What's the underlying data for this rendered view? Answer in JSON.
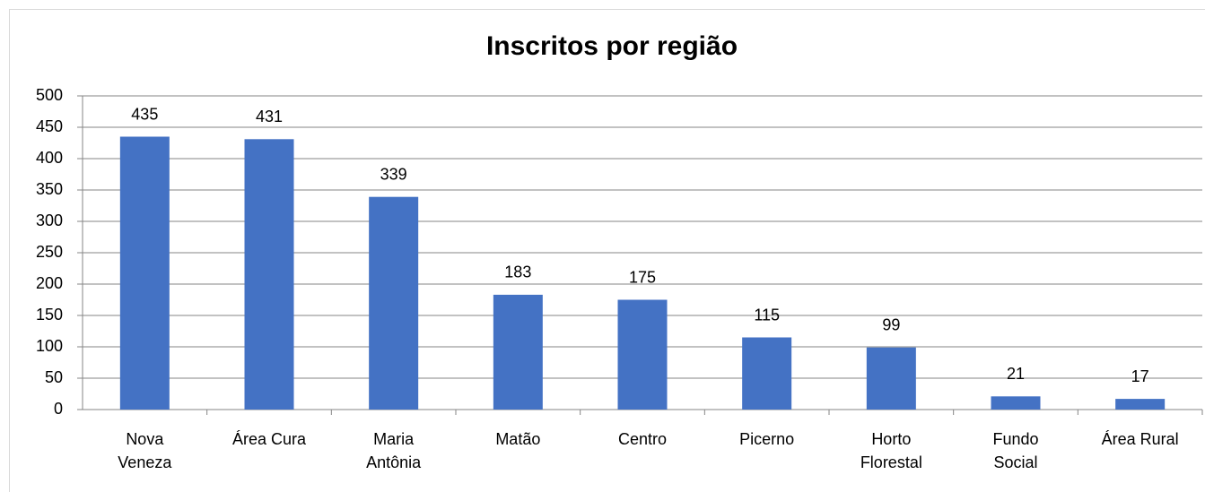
{
  "chart_data": {
    "type": "bar",
    "title": "Inscritos por região",
    "categories": [
      "Nova Veneza",
      "Área Cura",
      "Maria Antônia",
      "Matão",
      "Centro",
      "Picerno",
      "Horto Florestal",
      "Fundo Social",
      "Área Rural"
    ],
    "values": [
      435,
      431,
      339,
      183,
      175,
      115,
      99,
      21,
      17
    ],
    "color": "#4472c4",
    "ylim": [
      0,
      500
    ],
    "yticks": [
      0,
      50,
      100,
      150,
      200,
      250,
      300,
      350,
      400,
      450,
      500
    ],
    "grid": true
  }
}
